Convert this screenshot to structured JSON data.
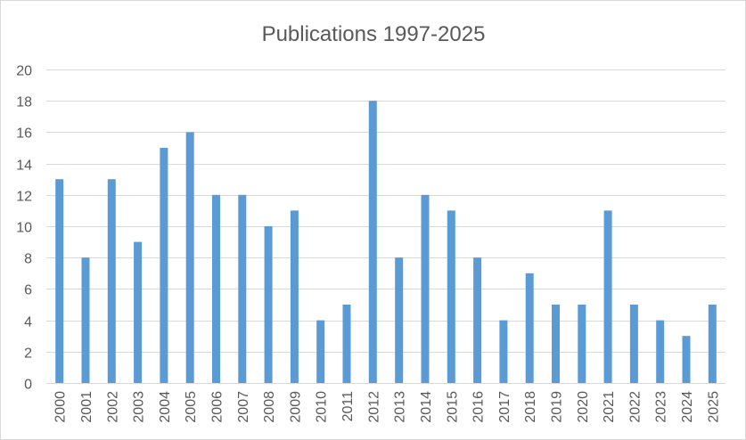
{
  "chart_data": {
    "type": "bar",
    "title": "Publications 1997-2025",
    "xlabel": "",
    "ylabel": "",
    "categories": [
      "2000",
      "2001",
      "2002",
      "2003",
      "2004",
      "2005",
      "2006",
      "2007",
      "2008",
      "2009",
      "2010",
      "2011",
      "2012",
      "2013",
      "2014",
      "2015",
      "2016",
      "2017",
      "2018",
      "2019",
      "2020",
      "2021",
      "2022",
      "2023",
      "2024",
      "2025"
    ],
    "values": [
      13,
      8,
      13,
      9,
      15,
      16,
      12,
      12,
      10,
      11,
      4,
      5,
      18,
      8,
      12,
      11,
      8,
      4,
      7,
      5,
      5,
      11,
      5,
      4,
      3,
      5
    ],
    "ylim": [
      0,
      20
    ],
    "yticks": [
      0,
      2,
      4,
      6,
      8,
      10,
      12,
      14,
      16,
      18,
      20
    ],
    "grid": true,
    "legend": "none",
    "colors": {
      "bar": "#5b9bd5",
      "grid": "#d9d9d9",
      "text": "#595959"
    }
  }
}
